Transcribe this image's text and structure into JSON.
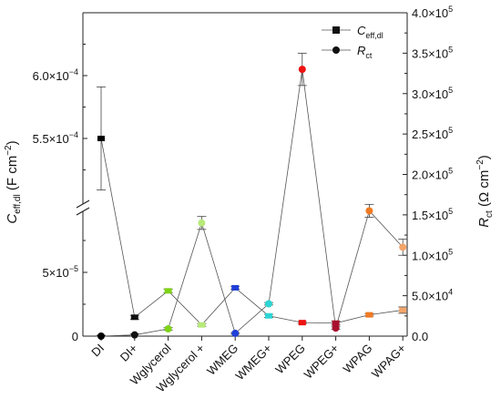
{
  "chart_data": {
    "type": "scatter",
    "categories": [
      "DI",
      "DI+",
      "Wglycerol",
      "Wglycerol +",
      "WMEG",
      "WMEG+",
      "WPEG",
      "WPEG+",
      "WPAG",
      "WPAG+"
    ],
    "left_axis": {
      "label_main": "C",
      "label_sub": "eff,dl",
      "label_unit": " (F cm",
      "label_unit_sup": "−2",
      "label_close": ")",
      "break": true,
      "lower_ticks": [
        {
          "value": 0,
          "text": "0"
        },
        {
          "value": 5e-05,
          "text": "5×10",
          "sup": "−5"
        }
      ],
      "upper_ticks": [
        {
          "value": 0.00055,
          "text": "5.5×10",
          "sup": "−4"
        },
        {
          "value": 0.0006,
          "text": "6.0×10",
          "sup": "−4"
        }
      ]
    },
    "right_axis": {
      "label_main": "R",
      "label_sub": "ct",
      "label_unit": " (Ω cm",
      "label_unit_sup": "−2",
      "label_close": ")",
      "ylim": [
        0,
        400000
      ],
      "ticks": [
        {
          "value": 0,
          "text": "0.0"
        },
        {
          "value": 50000,
          "text": "5.0×10",
          "sup": "4"
        },
        {
          "value": 100000,
          "text": "1.0×10",
          "sup": "5"
        },
        {
          "value": 150000,
          "text": "1.5×10",
          "sup": "5"
        },
        {
          "value": 200000,
          "text": "2.0×10",
          "sup": "5"
        },
        {
          "value": 250000,
          "text": "2.5×10",
          "sup": "5"
        },
        {
          "value": 300000,
          "text": "3.0×10",
          "sup": "5"
        },
        {
          "value": 350000,
          "text": "3.5×10",
          "sup": "5"
        },
        {
          "value": 400000,
          "text": "4.0×10",
          "sup": "5"
        }
      ]
    },
    "series": [
      {
        "name_main": "C",
        "name_sub": "eff,dl",
        "axis": "left",
        "marker": "square",
        "values": [
          0.00055,
          1.48e-05,
          3.55e-05,
          8.8e-06,
          3.79e-05,
          1.59e-05,
          1.06e-05,
          1.02e-05,
          1.67e-05,
          2.04e-05
        ],
        "errors": [
          4.1e-05,
          1.5e-06,
          1.5e-06,
          1e-06,
          1.2e-06,
          1.2e-06,
          8e-07,
          1.5e-06,
          1e-06,
          2.5e-06
        ]
      },
      {
        "name_main": "R",
        "name_sub": "ct",
        "axis": "right",
        "marker": "circle",
        "values": [
          0,
          1500,
          9000,
          140000,
          3500,
          40000,
          330000,
          10000,
          155000,
          110000
        ],
        "errors": [
          1000,
          1500,
          1500,
          8000,
          1000,
          1500,
          20000,
          1500,
          8000,
          10000
        ]
      }
    ],
    "point_colors": [
      "#000000",
      "#111111",
      "#7fd317",
      "#b8ea7a",
      "#1f3fd6",
      "#2fd4d4",
      "#ee1111",
      "#a80f2c",
      "#ef7a22",
      "#f4a56a"
    ]
  }
}
